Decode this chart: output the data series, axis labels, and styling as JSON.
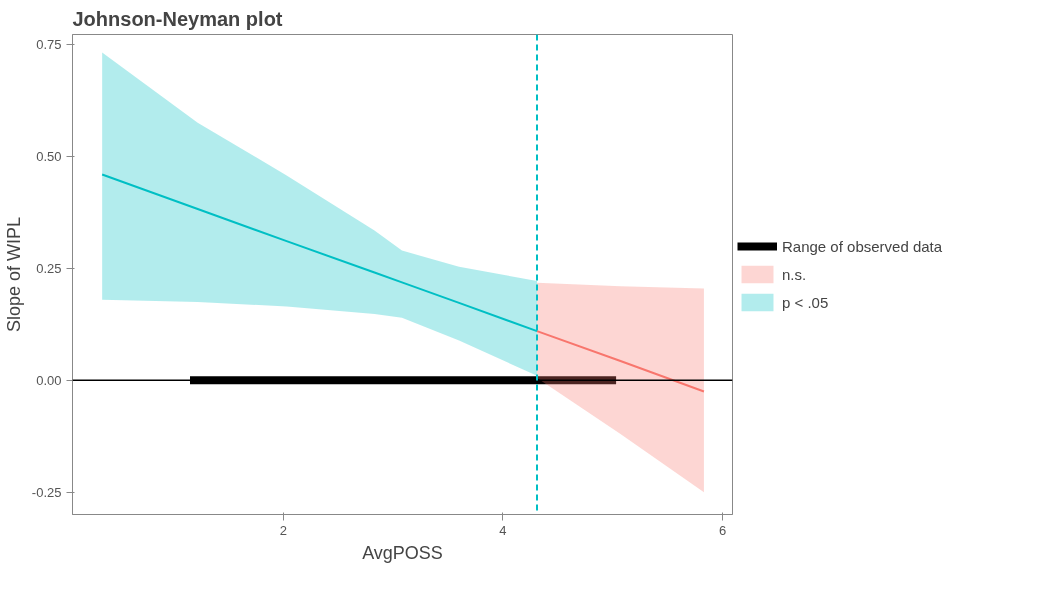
{
  "chart_data": {
    "type": "line",
    "title": "Johnson-Neyman plot",
    "xlabel": "AvgPOSS",
    "ylabel": "Slope of WIPL",
    "xlim": [
      0.08,
      6.09
    ],
    "xticks": [
      2,
      4,
      6
    ],
    "ylim": [
      -0.3,
      0.773
    ],
    "yticks": [
      {
        "value": -0.25,
        "label": "-0.25"
      },
      {
        "value": 0,
        "label": "0.00"
      },
      {
        "value": 0.25,
        "label": "0.25"
      },
      {
        "value": 0.5,
        "label": "0.50"
      },
      {
        "value": 0.75,
        "label": "0.75"
      }
    ],
    "series": [
      {
        "name": "Range of observed data",
        "color": "#000000",
        "x": [
          1.15,
          5.03
        ],
        "values": [
          0,
          0
        ]
      },
      {
        "name": "n.s.",
        "color": "#f8766d",
        "x": [
          4.31,
          5.07,
          5.83
        ],
        "values": [
          0.11,
          0.043,
          -0.025
        ],
        "lower": [
          0.005,
          -0.12,
          -0.25
        ],
        "upper": [
          0.218,
          0.21,
          0.205
        ]
      },
      {
        "name": "p < .05",
        "color": "#00bfc4",
        "x": [
          0.35,
          1.22,
          2.03,
          2.83,
          3.08,
          3.6,
          4.31
        ],
        "values": [
          0.46,
          0.383,
          0.311,
          0.241,
          0.219,
          0.173,
          0.11
        ],
        "lower": [
          0.18,
          0.175,
          0.165,
          0.148,
          0.14,
          0.089,
          0.01
        ],
        "upper": [
          0.733,
          0.576,
          0.458,
          0.335,
          0.29,
          0.254,
          0.222
        ]
      }
    ],
    "ref_lines": [
      {
        "axis": "y",
        "value": 0,
        "color": "#000000",
        "line_style": "solid"
      },
      {
        "axis": "x",
        "value": 4.31,
        "color": "#00bfc4",
        "line_style": "dashed"
      }
    ],
    "grid": false,
    "legend": "right"
  }
}
